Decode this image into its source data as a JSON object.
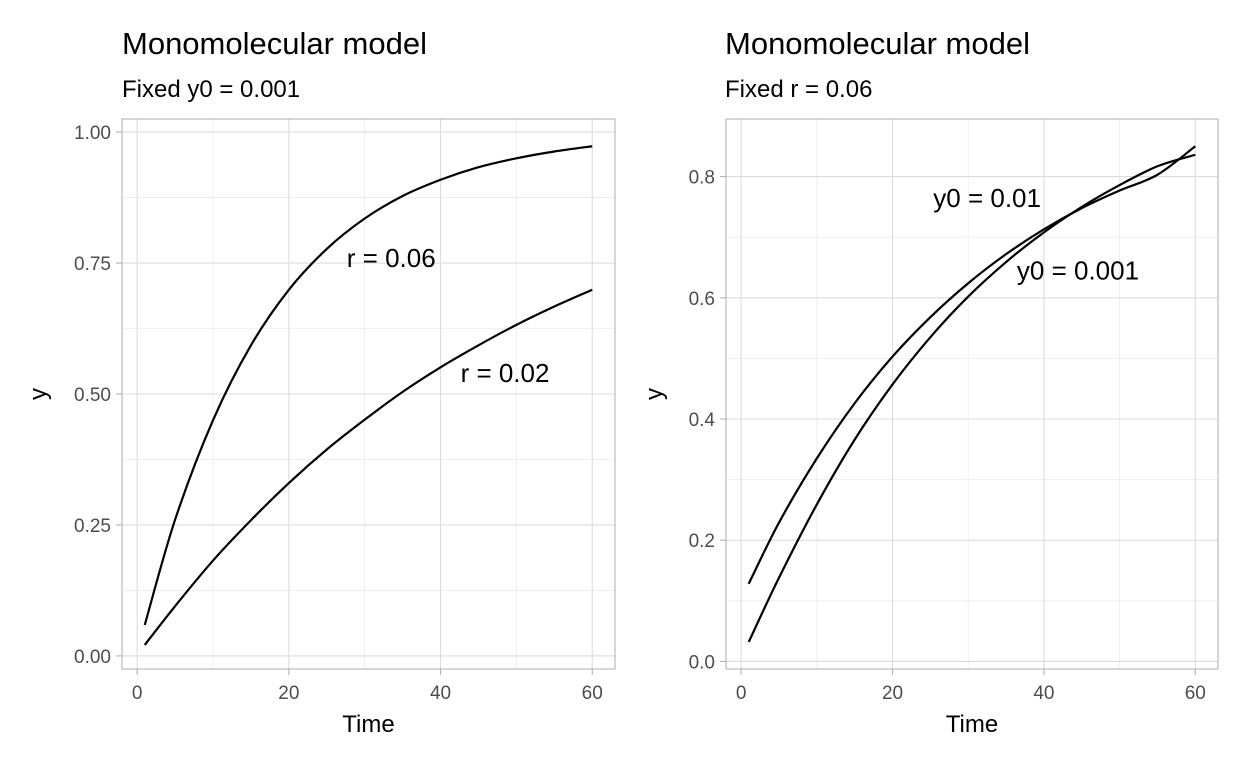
{
  "chart_data": [
    {
      "type": "line",
      "title": "Monomolecular model",
      "subtitle": "Fixed y0 = 0.001",
      "xlabel": "Time",
      "ylabel": "y",
      "xlim": [
        1,
        60
      ],
      "ylim": [
        0,
        1
      ],
      "x_ticks": [
        0,
        20,
        40,
        60
      ],
      "x_tick_labels": [
        "0",
        "20",
        "40",
        "60"
      ],
      "y_ticks": [
        0,
        0.25,
        0.5,
        0.75,
        1.0
      ],
      "y_tick_labels": [
        "0.00",
        "0.25",
        "0.50",
        "0.75",
        "1.00"
      ],
      "grid": true,
      "legend": "none",
      "x": [
        1,
        5,
        10,
        15,
        20,
        25,
        30,
        35,
        40,
        45,
        50,
        55,
        60
      ],
      "series": [
        {
          "values": [
            0.059,
            0.26,
            0.45,
            0.593,
            0.699,
            0.777,
            0.835,
            0.878,
            0.909,
            0.933,
            0.95,
            0.963,
            0.973
          ]
        },
        {
          "values": [
            0.021,
            0.095,
            0.182,
            0.259,
            0.33,
            0.394,
            0.451,
            0.504,
            0.551,
            0.593,
            0.632,
            0.667,
            0.699
          ]
        }
      ],
      "annotations": [
        {
          "text": "r = 0.06",
          "x": 33.5,
          "y": 0.76
        },
        {
          "text": "r = 0.02",
          "x": 48.5,
          "y": 0.54
        }
      ]
    },
    {
      "type": "line",
      "title": "Monomolecular model",
      "subtitle": "Fixed r = 0.06",
      "xlabel": "Time",
      "ylabel": "y",
      "xlim": [
        1,
        60
      ],
      "ylim": [
        0,
        0.85
      ],
      "x_ticks": [
        0,
        20,
        40,
        60
      ],
      "x_tick_labels": [
        "0",
        "20",
        "40",
        "60"
      ],
      "y_ticks": [
        0,
        0.2,
        0.4,
        0.6,
        0.8
      ],
      "y_tick_labels": [
        "0.0",
        "0.2",
        "0.4",
        "0.6",
        "0.8"
      ],
      "grid": true,
      "legend": "none",
      "x": [
        1,
        5,
        10,
        15,
        20,
        25,
        30,
        35,
        40,
        45,
        50,
        55,
        60
      ],
      "series": [
        {
          "values": [
            0.128,
            0.229,
            0.335,
            0.426,
            0.503,
            0.568,
            0.624,
            0.672,
            0.713,
            0.748,
            0.777,
            0.803,
            0.85
          ]
        },
        {
          "values": [
            0.032,
            0.138,
            0.259,
            0.366,
            0.457,
            0.535,
            0.602,
            0.659,
            0.708,
            0.75,
            0.786,
            0.817,
            0.836
          ]
        }
      ],
      "annotations": [
        {
          "text": "y0 = 0.01",
          "x": 32.5,
          "y": 0.765
        },
        {
          "text": "y0 = 0.001",
          "x": 44.5,
          "y": 0.645
        }
      ]
    }
  ]
}
